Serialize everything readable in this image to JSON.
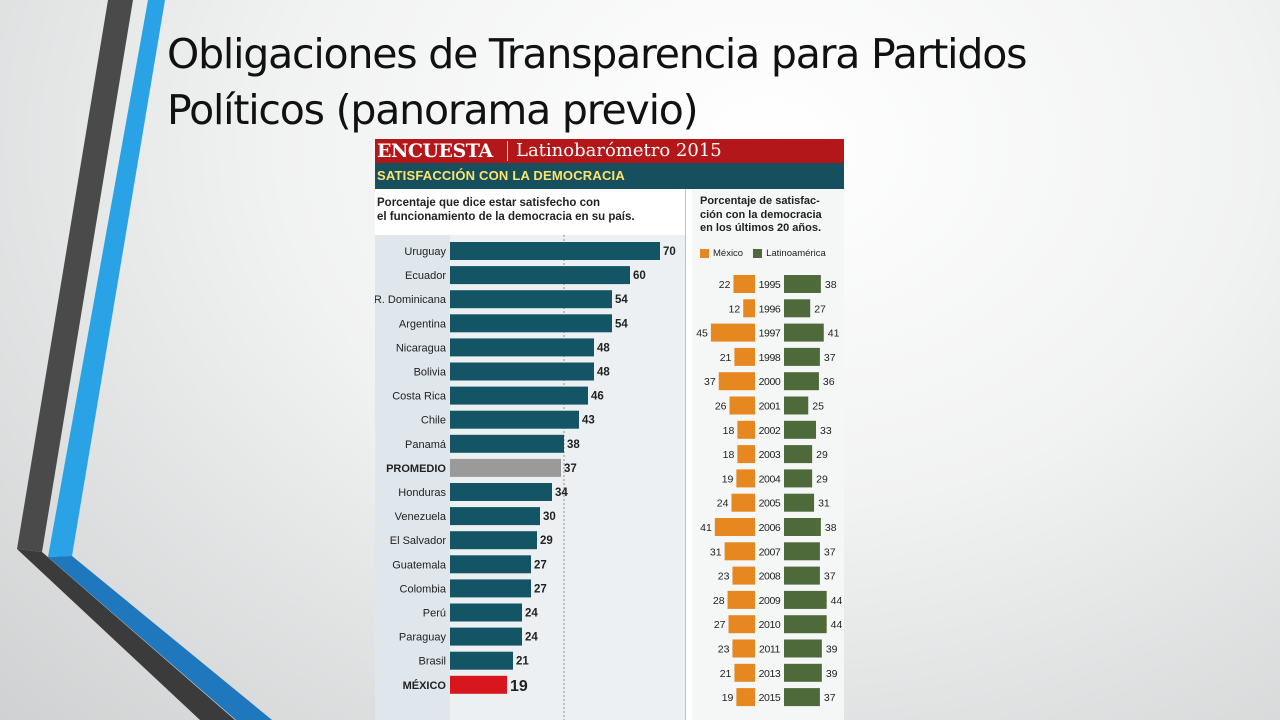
{
  "slide": {
    "title_line1": "Obligaciones de Transparencia para Partidos",
    "title_line2": "Políticos (panorama previo)"
  },
  "infographic": {
    "banner_tag": "ENCUESTA",
    "banner_source": "Latinobarómetro 2015",
    "section_title": "SATISFACCIÓN CON LA DEMOCRACIA",
    "left_subtitle_line1": "Porcentaje que dice estar satisfecho con",
    "left_subtitle_line2": "el funcionamiento de la democracia en su país.",
    "right_subtitle_line1": "Porcentaje de satisfac-",
    "right_subtitle_line2": "ción con la democracia",
    "right_subtitle_line3": "en los últimos 20 años.",
    "legend_mexico": "México",
    "legend_latam": "Latinoamérica"
  },
  "colors": {
    "bar": "#145565",
    "promedio": "#9a9a9a",
    "mexico_bar": "#d8161d",
    "mexico_series": "#e6871f",
    "latam_series": "#4e6a3b"
  },
  "chart_data": [
    {
      "type": "bar",
      "orientation": "horizontal",
      "categories": [
        "Uruguay",
        "Ecuador",
        "R. Dominicana",
        "Argentina",
        "Nicaragua",
        "Bolivia",
        "Costa Rica",
        "Chile",
        "Panamá",
        "PROMEDIO",
        "Honduras",
        "Venezuela",
        "El Salvador",
        "Guatemala",
        "Colombia",
        "Perú",
        "Paraguay",
        "Brasil",
        "MÉXICO"
      ],
      "values": [
        70,
        60,
        54,
        54,
        48,
        48,
        46,
        43,
        38,
        37,
        34,
        30,
        29,
        27,
        27,
        24,
        24,
        21,
        19
      ],
      "highlight": {
        "PROMEDIO": "promedio",
        "MÉXICO": "mexico"
      }
    },
    {
      "type": "bar",
      "orientation": "diverging",
      "categories": [
        "1995",
        "1996",
        "1997",
        "1998",
        "2000",
        "2001",
        "2002",
        "2003",
        "2004",
        "2005",
        "2006",
        "2007",
        "2008",
        "2009",
        "2010",
        "2011",
        "2013",
        "2015"
      ],
      "series": [
        {
          "name": "México",
          "values": [
            22,
            12,
            45,
            21,
            37,
            26,
            18,
            18,
            19,
            24,
            41,
            31,
            23,
            28,
            27,
            23,
            21,
            19
          ]
        },
        {
          "name": "Latinoamérica",
          "values": [
            38,
            27,
            41,
            37,
            36,
            25,
            33,
            29,
            29,
            31,
            38,
            37,
            37,
            44,
            44,
            39,
            39,
            37
          ]
        }
      ]
    }
  ]
}
